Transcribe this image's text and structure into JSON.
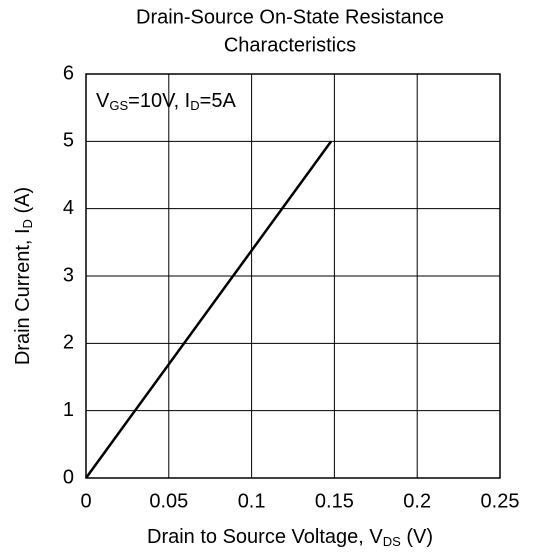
{
  "chart_data": {
    "type": "line",
    "title": [
      "Drain-Source On-State Resistance",
      "Characteristics"
    ],
    "annotation": [
      "V",
      "GS",
      "=10V, I",
      "D",
      "=5A"
    ],
    "xlabel": [
      "Drain to Source Voltage, V",
      "DS",
      " (V)"
    ],
    "ylabel": [
      "Drain Current, I",
      "D",
      " (A)"
    ],
    "x": [
      0,
      0.148
    ],
    "values": [
      0,
      5
    ],
    "color": "#000000",
    "xlim": [
      0,
      0.25
    ],
    "xticks": [
      0,
      0.05,
      0.1,
      0.15,
      0.2,
      0.25
    ],
    "ylim": [
      0,
      6
    ],
    "yticks": [
      0,
      1,
      2,
      3,
      4,
      5,
      6
    ],
    "grid": true
  }
}
